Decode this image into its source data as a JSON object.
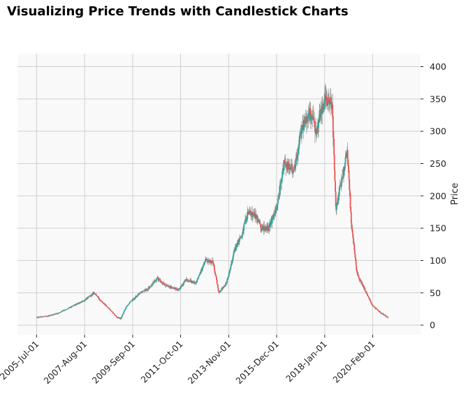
{
  "chart_data": {
    "type": "candlestick",
    "title": "Visualizing Price Trends with Candlestick Charts",
    "xlabel": "",
    "ylabel": "Price",
    "ylim": [
      -15,
      420
    ],
    "xlim": [
      "2004-09-01",
      "2022-03-01"
    ],
    "y_ticks": [
      0,
      50,
      100,
      150,
      200,
      250,
      300,
      350,
      400
    ],
    "x_ticks": [
      "2005-Jul-01",
      "2007-Aug-01",
      "2009-Sep-01",
      "2011-Oct-01",
      "2013-Nov-01",
      "2015-Dec-01",
      "2018-Jan-01",
      "2020-Feb-01"
    ],
    "x_tick_dates": [
      "2005-07-01",
      "2007-08-01",
      "2009-09-01",
      "2011-10-01",
      "2013-11-01",
      "2015-12-01",
      "2018-01-01",
      "2020-02-01"
    ],
    "grid": true,
    "y_axis_position": "right",
    "up_color": "#26a69a",
    "down_color": "#ef5350",
    "wick_color": "#888888",
    "background_color": "#f9f9f9",
    "series": {
      "start": "2005-07-01",
      "frequency": "weekly",
      "close_anchors": [
        [
          "2005-07-01",
          12
        ],
        [
          "2006-01-01",
          14
        ],
        [
          "2006-06-01",
          18
        ],
        [
          "2007-01-01",
          28
        ],
        [
          "2007-08-01",
          38
        ],
        [
          "2008-01-01",
          50
        ],
        [
          "2008-04-01",
          40
        ],
        [
          "2008-08-01",
          28
        ],
        [
          "2009-01-01",
          12
        ],
        [
          "2009-03-01",
          10
        ],
        [
          "2009-06-01",
          30
        ],
        [
          "2010-01-01",
          50
        ],
        [
          "2010-06-01",
          58
        ],
        [
          "2010-10-01",
          72
        ],
        [
          "2011-03-01",
          60
        ],
        [
          "2011-09-01",
          55
        ],
        [
          "2012-01-01",
          70
        ],
        [
          "2012-06-01",
          65
        ],
        [
          "2012-11-01",
          100
        ],
        [
          "2013-03-01",
          98
        ],
        [
          "2013-06-01",
          50
        ],
        [
          "2013-10-01",
          65
        ],
        [
          "2014-02-01",
          115
        ],
        [
          "2014-06-01",
          140
        ],
        [
          "2014-09-01",
          175
        ],
        [
          "2015-01-01",
          170
        ],
        [
          "2015-04-01",
          150
        ],
        [
          "2015-08-01",
          150
        ],
        [
          "2015-12-01",
          180
        ],
        [
          "2016-04-01",
          250
        ],
        [
          "2016-09-01",
          240
        ],
        [
          "2017-01-01",
          300
        ],
        [
          "2017-05-01",
          330
        ],
        [
          "2017-09-01",
          300
        ],
        [
          "2018-01-01",
          350
        ],
        [
          "2018-05-01",
          345
        ],
        [
          "2018-07-01",
          180
        ],
        [
          "2019-01-01",
          270
        ],
        [
          "2019-03-01",
          160
        ],
        [
          "2019-06-01",
          80
        ],
        [
          "2019-10-01",
          55
        ],
        [
          "2020-02-01",
          30
        ],
        [
          "2020-06-01",
          20
        ],
        [
          "2020-10-01",
          12
        ]
      ]
    }
  }
}
